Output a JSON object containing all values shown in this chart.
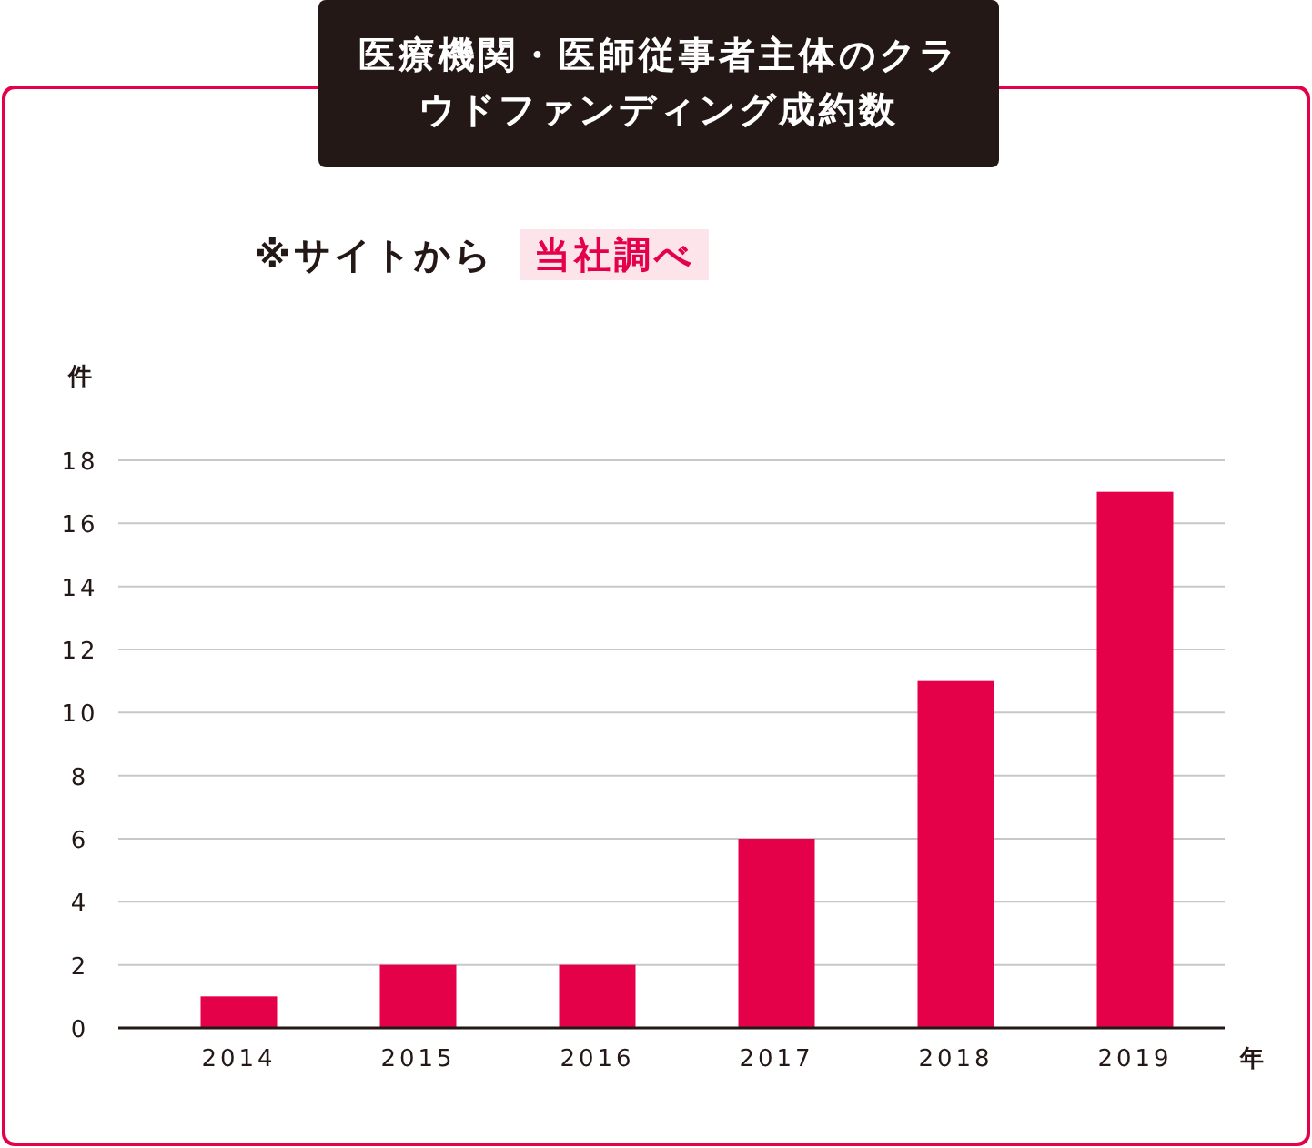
{
  "chart_data": {
    "type": "bar",
    "title": "医療機関・医師従事者主体のクラウドファンディング成約数",
    "subtitle": "※サイトから",
    "annotations": [
      "当社調べ"
    ],
    "ylabel": "件",
    "xlabel": "年",
    "categories": [
      "2014",
      "2015",
      "2016",
      "2017",
      "2018",
      "2019"
    ],
    "values": [
      1,
      2,
      2,
      6,
      11,
      17
    ],
    "color": "#e5004a",
    "ylim": [
      0,
      18
    ],
    "yticks": [
      0,
      2,
      4,
      6,
      8,
      10,
      12,
      14,
      16,
      18
    ],
    "grid": "y"
  }
}
